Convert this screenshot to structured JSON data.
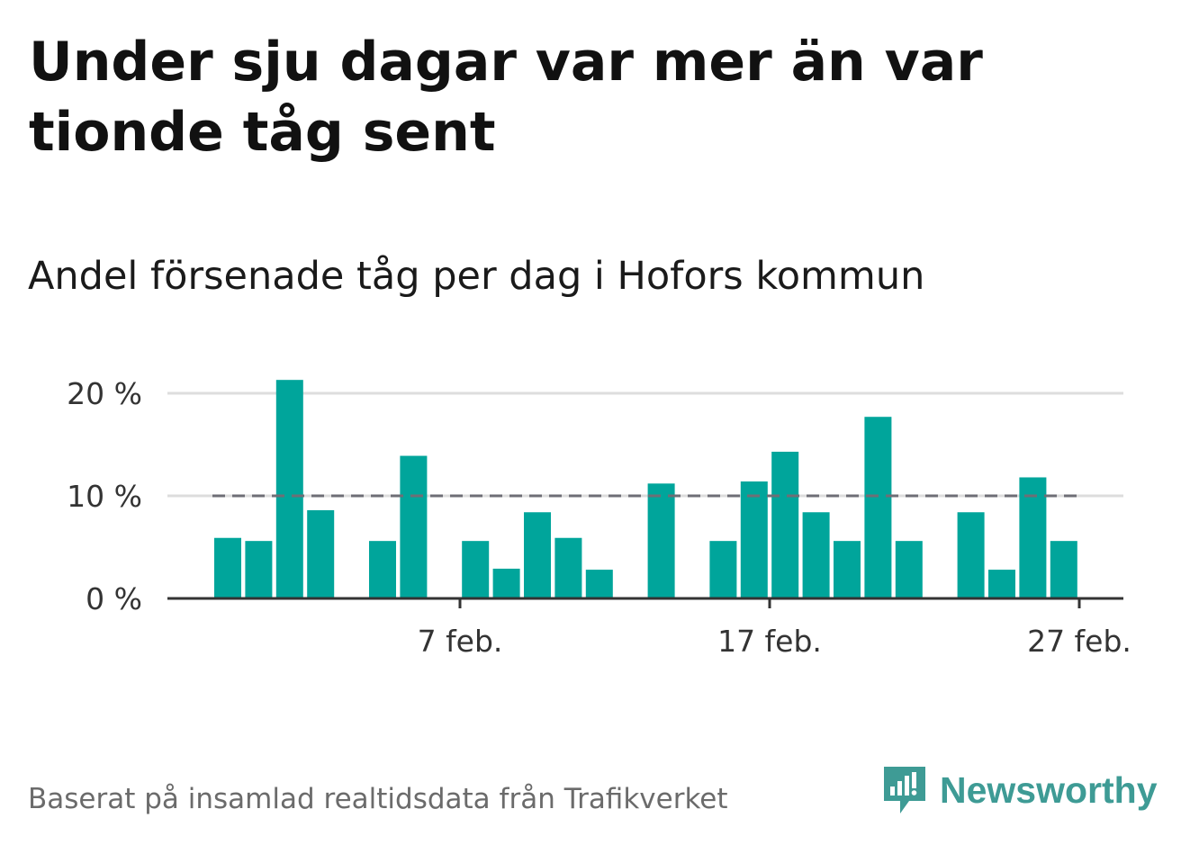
{
  "title": "Under sju dagar var mer än var tionde tåg sent",
  "subtitle": "Andel försenade tåg per dag i Hofors kommun",
  "footer": "Baserat på insamlad realtidsdata från Trafikverket",
  "brand": {
    "name": "Newsworthy",
    "icon": "newsworthy-logo-icon",
    "color": "#3e9b95"
  },
  "colors": {
    "bar": "#00a59b",
    "reference_line": "#6e6e76",
    "grid": "#dddddd",
    "axis": "#333333"
  },
  "chart_data": {
    "type": "bar",
    "x": [
      "2024-01-30",
      "2024-01-31",
      "2024-02-01",
      "2024-02-02",
      "2024-02-03",
      "2024-02-04",
      "2024-02-05",
      "2024-02-06",
      "2024-02-07",
      "2024-02-08",
      "2024-02-09",
      "2024-02-10",
      "2024-02-11",
      "2024-02-12",
      "2024-02-13",
      "2024-02-14",
      "2024-02-15",
      "2024-02-16",
      "2024-02-17",
      "2024-02-18",
      "2024-02-19",
      "2024-02-20",
      "2024-02-21",
      "2024-02-22",
      "2024-02-23",
      "2024-02-24",
      "2024-02-25",
      "2024-02-26",
      "2024-02-27",
      "2024-02-28"
    ],
    "values": [
      5.9,
      5.6,
      21.3,
      8.6,
      null,
      5.6,
      13.9,
      null,
      5.6,
      2.9,
      8.4,
      5.9,
      2.8,
      null,
      11.2,
      null,
      5.6,
      11.4,
      14.3,
      8.4,
      5.6,
      17.7,
      5.6,
      null,
      8.4,
      2.8,
      11.8,
      5.6,
      null,
      null
    ],
    "reference_line": 10,
    "ylim": [
      0,
      22
    ],
    "yticks": [
      0,
      10,
      20
    ],
    "ytick_labels": [
      "0 %",
      "10 %",
      "20 %"
    ],
    "xticks": [
      "2024-02-07",
      "2024-02-17",
      "2024-02-27"
    ],
    "xtick_labels": [
      "7 feb.",
      "17 feb.",
      "27 feb."
    ],
    "grid": true,
    "legend": "none",
    "xlabel": "",
    "ylabel": ""
  }
}
